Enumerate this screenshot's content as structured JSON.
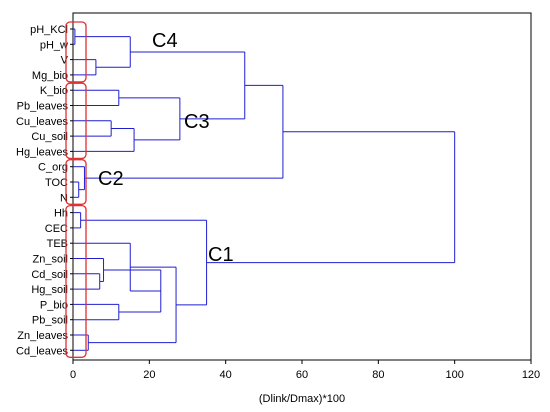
{
  "chart_data": {
    "type": "dendrogram",
    "title": "",
    "xlabel": "(Dlink/Dmax)*100",
    "ylabel": "",
    "xlim": [
      0,
      120
    ],
    "x_ticks": [
      "0",
      "20",
      "40",
      "60",
      "80",
      "100",
      "120"
    ],
    "grid": false,
    "legend": "none",
    "leaves": [
      "pH_KCl",
      "pH_w",
      "V",
      "Mg_bio",
      "K_bio",
      "Pb_leaves",
      "Cu_leaves",
      "Cu_soil",
      "Hg_leaves",
      "C_org",
      "TOC",
      "N",
      "Hh",
      "CEC",
      "TEB",
      "Zn_soil",
      "Cd_soil",
      "Hg_soil",
      "P_bio",
      "Pb_soil",
      "Zn_leaves",
      "Cd_leaves"
    ],
    "merges": [
      {
        "a": "pH_KCl",
        "b": "pH_w",
        "height": 0.5
      },
      {
        "a": "V",
        "b": "Mg_bio",
        "height": 6
      },
      {
        "a": "pH_KCl+pH_w",
        "b": "V+Mg_bio",
        "height": 15
      },
      {
        "a": "Cu_leaves",
        "b": "Cu_soil",
        "height": 10
      },
      {
        "a": "Cu_leaves+Cu_soil",
        "b": "Hg_leaves",
        "height": 16
      },
      {
        "a": "K_bio",
        "b": "Pb_leaves",
        "height": 12
      },
      {
        "a": "K_bio+Pb_leaves",
        "b": "Cu_leaves+Cu_soil+Hg_leaves",
        "height": 28
      },
      {
        "a": "C4",
        "b": "C3",
        "height": 45
      },
      {
        "a": "TOC",
        "b": "N",
        "height": 1.5
      },
      {
        "a": "C_org",
        "b": "TOC+N",
        "height": 3
      },
      {
        "a": "C4+C3",
        "b": "C2",
        "height": 55
      },
      {
        "a": "Hh",
        "b": "CEC",
        "height": 2
      },
      {
        "a": "Cd_soil",
        "b": "Hg_soil",
        "height": 7
      },
      {
        "a": "Zn_soil",
        "b": "Cd_soil+Hg_soil",
        "height": 8
      },
      {
        "a": "P_bio",
        "b": "Pb_soil",
        "height": 12
      },
      {
        "a": "Zn_soil+Cd_soil+Hg_soil",
        "b": "P_bio+Pb_soil",
        "height": 23
      },
      {
        "a": "Zn_leaves",
        "b": "Cd_leaves",
        "height": 4
      },
      {
        "a": "TEB",
        "b": "Zn_soil..Pb_soil",
        "height": 15
      },
      {
        "a": "TEB+Zn_soil..Pb_soil",
        "b": "Zn_leaves+Cd_leaves",
        "height": 27
      },
      {
        "a": "Hh+CEC",
        "b": "TEB..Cd_leaves",
        "height": 35
      },
      {
        "a": "C4+C3+C2",
        "b": "C1",
        "height": 100
      }
    ],
    "clusters": [
      {
        "name": "C4",
        "members": [
          "pH_KCl",
          "pH_w",
          "V",
          "Mg_bio"
        ]
      },
      {
        "name": "C3",
        "members": [
          "K_bio",
          "Pb_leaves",
          "Cu_leaves",
          "Cu_soil",
          "Hg_leaves"
        ]
      },
      {
        "name": "C2",
        "members": [
          "C_org",
          "TOC",
          "N"
        ]
      },
      {
        "name": "C1",
        "members": [
          "Hh",
          "CEC",
          "TEB",
          "Zn_soil",
          "Cd_soil",
          "Hg_soil",
          "P_bio",
          "Pb_soil",
          "Zn_leaves",
          "Cd_leaves"
        ]
      }
    ],
    "colors": {
      "dendrogram": "#1f1fd0",
      "highlight": "#e03030",
      "axis": "#000000"
    }
  }
}
